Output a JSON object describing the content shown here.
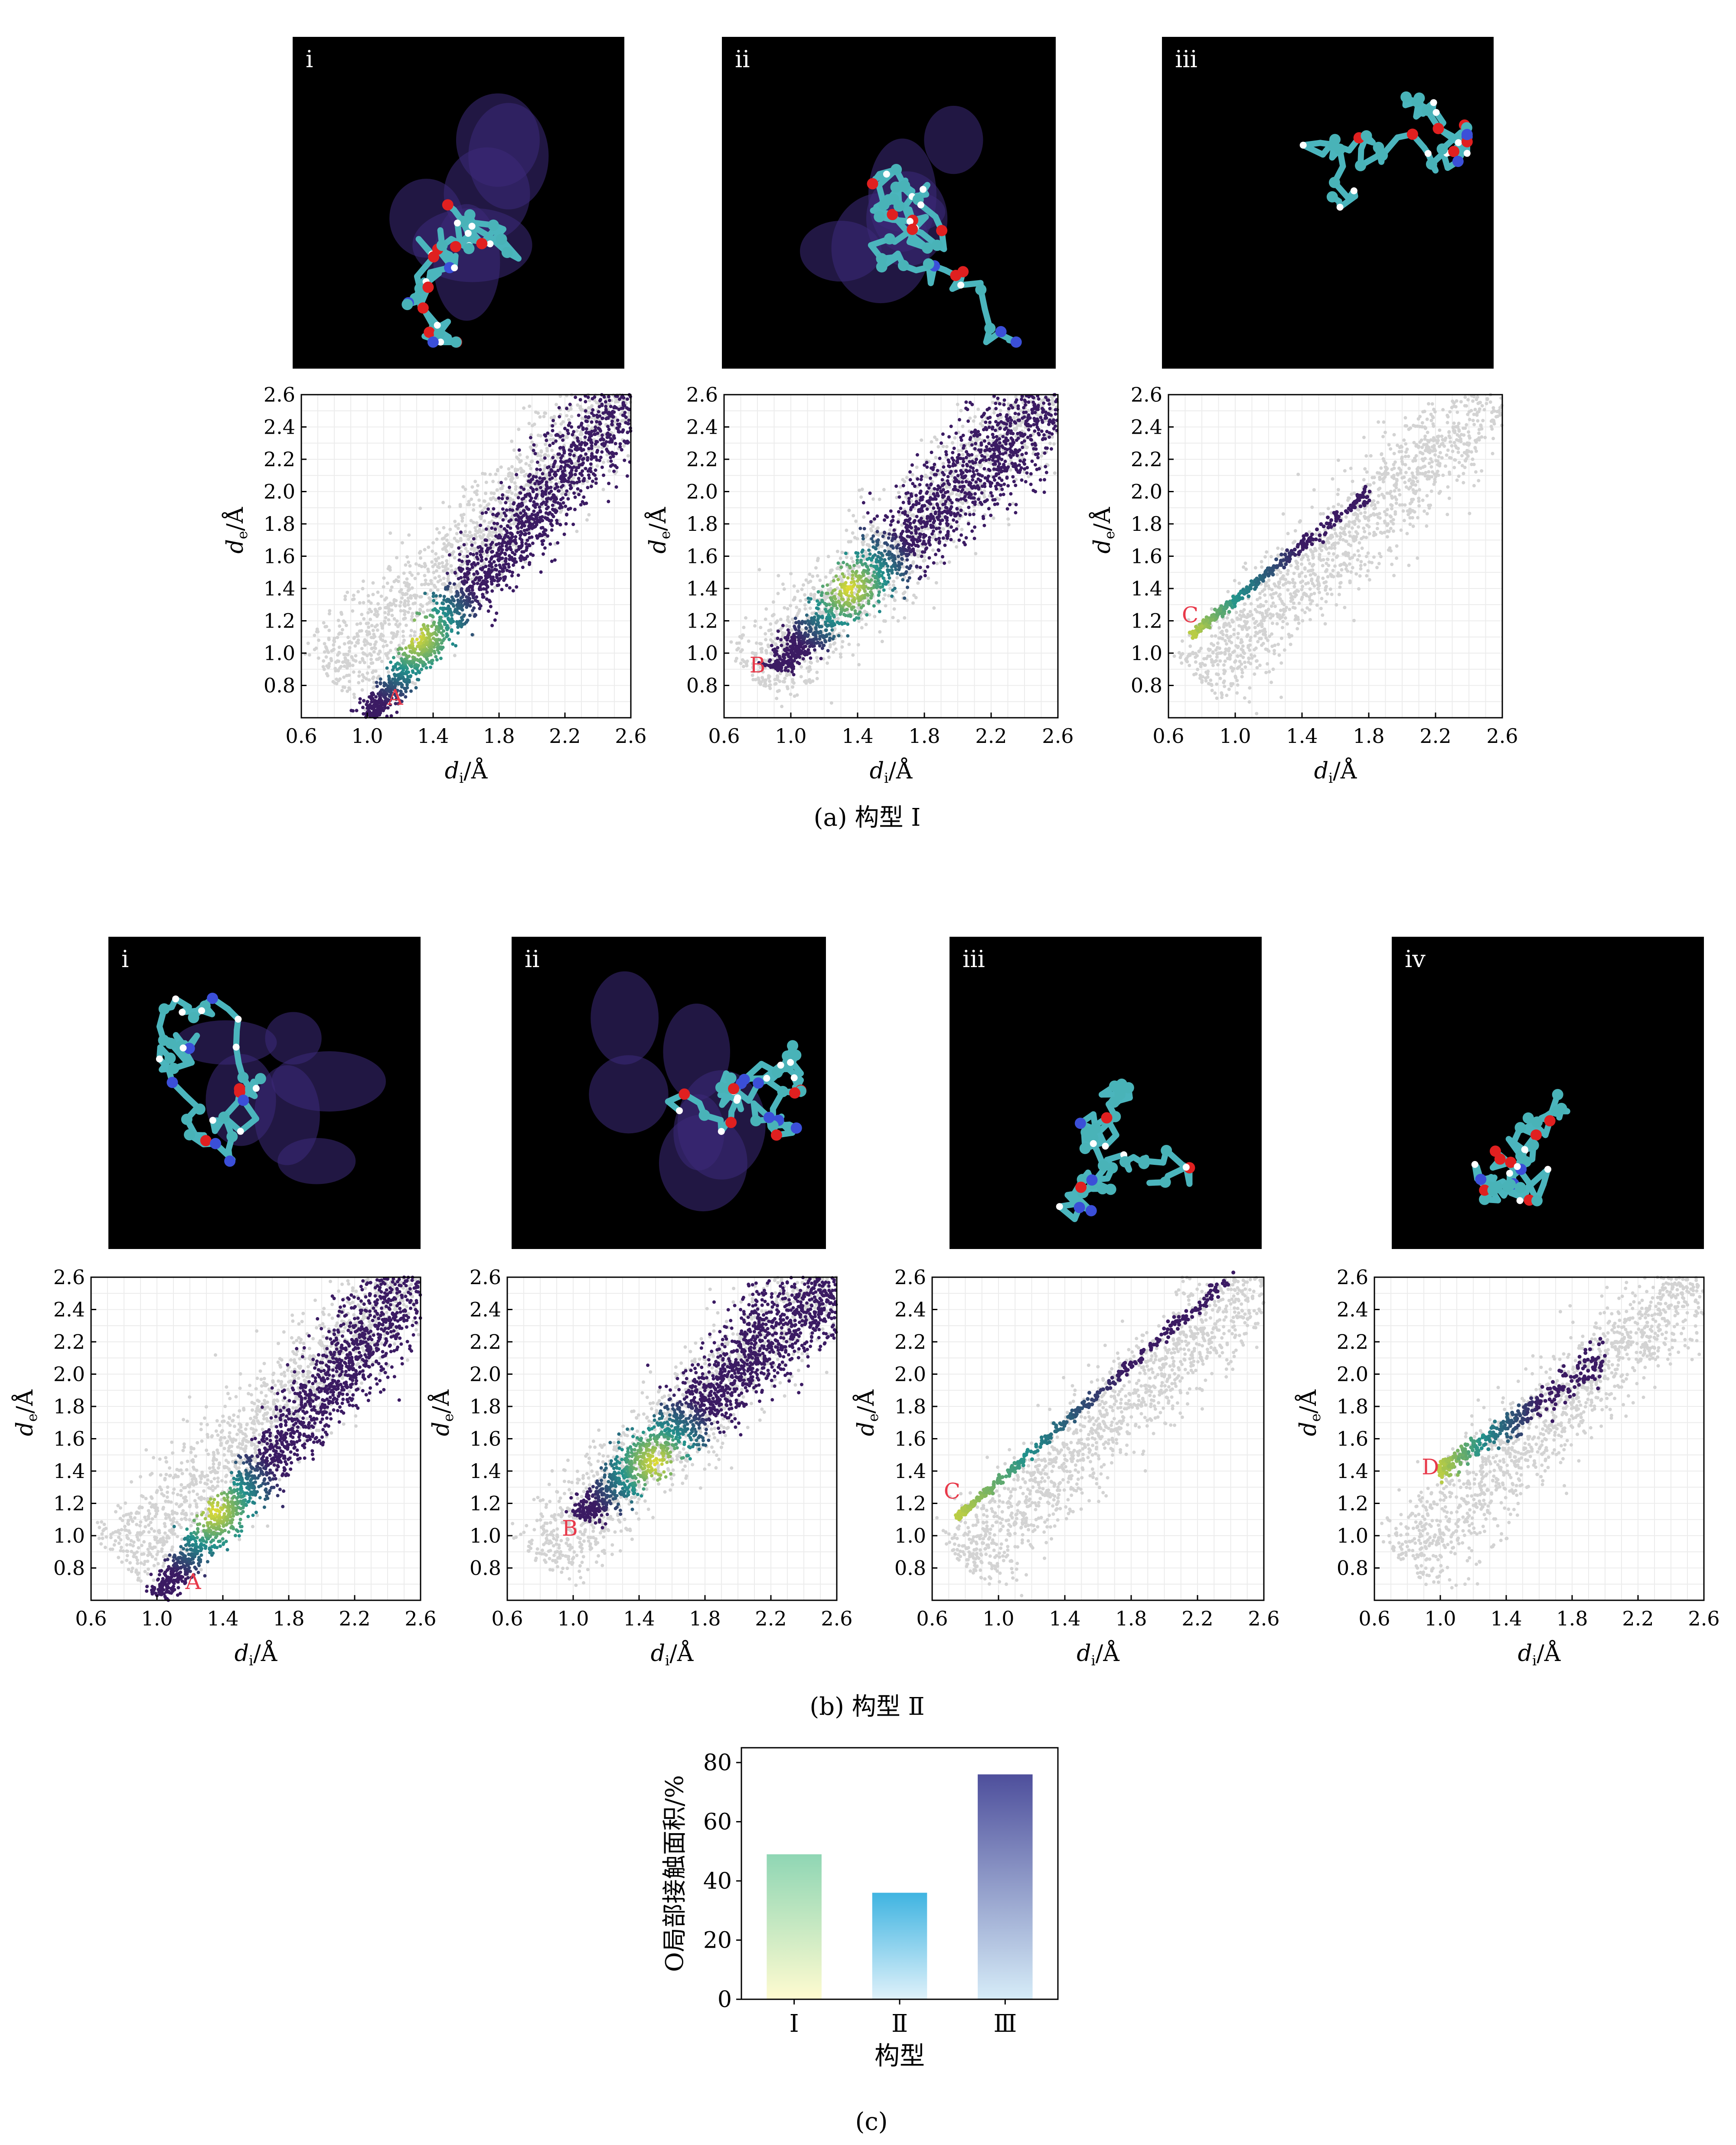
{
  "captions": {
    "a": "(a) 构型 Ⅰ",
    "b": "(b) 构型 Ⅱ",
    "c": "(c)"
  },
  "colors": {
    "grey_points": "#d3d3d3",
    "density_low": "#3b1b63",
    "density_mid": "#21918c",
    "density_high": "#fde725",
    "marker_label": "#e8394a",
    "panel_bg": "#000000",
    "bar_I_top": "#8fd6b4",
    "bar_I_bottom": "#fffbd0",
    "bar_II_top": "#3fb4e1",
    "bar_II_bottom": "#dff1fa",
    "bar_III_top": "#4e4f9c",
    "bar_III_bottom": "#d6ecf8"
  },
  "molecule_panels": {
    "row_a": [
      {
        "label": "i",
        "icon": "molecule-noncovalent-surface-icon"
      },
      {
        "label": "ii",
        "icon": "molecule-noncovalent-surface-icon"
      },
      {
        "label": "iii",
        "icon": "molecule-ball-stick-icon"
      }
    ],
    "row_b": [
      {
        "label": "i",
        "icon": "molecule-noncovalent-surface-icon"
      },
      {
        "label": "ii",
        "icon": "molecule-noncovalent-surface-icon"
      },
      {
        "label": "iii",
        "icon": "molecule-ball-stick-icon"
      },
      {
        "label": "ⅳ",
        "icon": "molecule-ball-stick-icon"
      }
    ]
  },
  "chart_data": [
    {
      "id": "a-i",
      "type": "scatter",
      "xlabel_main": "d",
      "xlabel_sub": "i",
      "xlabel_unit": "/Å",
      "ylabel_main": "d",
      "ylabel_sub": "e",
      "ylabel_unit": "/Å",
      "xlim": [
        0.6,
        2.6
      ],
      "ylim": [
        0.6,
        2.6
      ],
      "xticks": [
        "0.6",
        "1.0",
        "1.4",
        "1.8",
        "2.2",
        "2.6"
      ],
      "yticks": [
        "0.8",
        "1.0",
        "1.2",
        "1.4",
        "1.6",
        "1.8",
        "2.0",
        "2.2",
        "2.4",
        "2.6"
      ],
      "grid": true,
      "marker": {
        "label": "A",
        "x": 1.17,
        "y": 0.68
      },
      "highlight": "broad band from (1.0,0.6) to (2.6,2.6), densest near (1.3,1.1)"
    },
    {
      "id": "a-ii",
      "type": "scatter",
      "xlabel_main": "d",
      "xlabel_sub": "i",
      "xlabel_unit": "/Å",
      "ylabel_main": "d",
      "ylabel_sub": "e",
      "ylabel_unit": "/Å",
      "xlim": [
        0.6,
        2.6
      ],
      "ylim": [
        0.6,
        2.6
      ],
      "xticks": [
        "0.6",
        "1.0",
        "1.4",
        "1.8",
        "2.2",
        "2.6"
      ],
      "yticks": [
        "0.8",
        "1.0",
        "1.2",
        "1.4",
        "1.6",
        "1.8",
        "2.0",
        "2.2",
        "2.4",
        "2.6"
      ],
      "grid": true,
      "marker": {
        "label": "B",
        "x": 0.8,
        "y": 0.88
      },
      "highlight": "broad band from (0.9,0.9) to (2.6,2.6), densest near (1.35,1.4)"
    },
    {
      "id": "a-iii",
      "type": "scatter",
      "xlabel_main": "d",
      "xlabel_sub": "i",
      "xlabel_unit": "/Å",
      "ylabel_main": "d",
      "ylabel_sub": "e",
      "ylabel_unit": "/Å",
      "xlim": [
        0.6,
        2.6
      ],
      "ylim": [
        0.6,
        2.6
      ],
      "xticks": [
        "0.6",
        "1.0",
        "1.4",
        "1.8",
        "2.2",
        "2.6"
      ],
      "yticks": [
        "0.8",
        "1.0",
        "1.2",
        "1.4",
        "1.6",
        "1.8",
        "2.0",
        "2.2",
        "2.4",
        "2.6"
      ],
      "grid": true,
      "marker": {
        "label": "C",
        "x": 0.73,
        "y": 1.19
      },
      "highlight": "narrow wing from (0.75,1.12) to (1.8,2.0)"
    },
    {
      "id": "b-i",
      "type": "scatter",
      "xlabel_main": "d",
      "xlabel_sub": "i",
      "xlabel_unit": "/Å",
      "ylabel_main": "d",
      "ylabel_sub": "e",
      "ylabel_unit": "/Å",
      "xlim": [
        0.6,
        2.6
      ],
      "ylim": [
        0.6,
        2.6
      ],
      "xticks": [
        "0.6",
        "1.0",
        "1.4",
        "1.8",
        "2.2",
        "2.6"
      ],
      "yticks": [
        "0.8",
        "1.0",
        "1.2",
        "1.4",
        "1.6",
        "1.8",
        "2.0",
        "2.2",
        "2.4",
        "2.6"
      ],
      "grid": true,
      "marker": {
        "label": "A",
        "x": 1.22,
        "y": 0.67
      },
      "highlight": "broad band from (1.0,0.62) to (2.6,2.6), densest near (1.35,1.15)"
    },
    {
      "id": "b-ii",
      "type": "scatter",
      "xlabel_main": "d",
      "xlabel_sub": "i",
      "xlabel_unit": "/Å",
      "ylabel_main": "d",
      "ylabel_sub": "e",
      "ylabel_unit": "/Å",
      "xlim": [
        0.6,
        2.6
      ],
      "ylim": [
        0.6,
        2.6
      ],
      "xticks": [
        "0.6",
        "1.0",
        "1.4",
        "1.8",
        "2.2",
        "2.6"
      ],
      "yticks": [
        "0.8",
        "1.0",
        "1.2",
        "1.4",
        "1.6",
        "1.8",
        "2.0",
        "2.2",
        "2.4",
        "2.6"
      ],
      "grid": true,
      "marker": {
        "label": "B",
        "x": 0.98,
        "y": 1.0
      },
      "highlight": "broad band from (1.05,1.1) to (2.6,2.6), densest near (1.5,1.45)"
    },
    {
      "id": "b-iii",
      "type": "scatter",
      "xlabel_main": "d",
      "xlabel_sub": "i",
      "xlabel_unit": "/Å",
      "ylabel_main": "d",
      "ylabel_sub": "e",
      "ylabel_unit": "/Å",
      "xlim": [
        0.6,
        2.6
      ],
      "ylim": [
        0.6,
        2.6
      ],
      "xticks": [
        "0.6",
        "1.0",
        "1.4",
        "1.8",
        "2.2",
        "2.6"
      ],
      "yticks": [
        "0.8",
        "1.0",
        "1.2",
        "1.4",
        "1.6",
        "1.8",
        "2.0",
        "2.2",
        "2.4",
        "2.6"
      ],
      "grid": true,
      "marker": {
        "label": "C",
        "x": 0.72,
        "y": 1.23
      },
      "highlight": "narrow wing from (0.76,1.12) to (2.4,2.6)"
    },
    {
      "id": "b-iv",
      "type": "scatter",
      "xlabel_main": "d",
      "xlabel_sub": "i",
      "xlabel_unit": "/Å",
      "ylabel_main": "d",
      "ylabel_sub": "e",
      "ylabel_unit": "/Å",
      "xlim": [
        0.6,
        2.6
      ],
      "ylim": [
        0.6,
        2.6
      ],
      "xticks": [
        "0.6",
        "1.0",
        "1.4",
        "1.8",
        "2.2",
        "2.6"
      ],
      "yticks": [
        "0.8",
        "1.0",
        "1.2",
        "1.4",
        "1.6",
        "1.8",
        "2.0",
        "2.2",
        "2.4",
        "2.6"
      ],
      "grid": true,
      "marker": {
        "label": "D",
        "x": 0.94,
        "y": 1.38
      },
      "highlight": "short wing from (1.0,1.4) to (2.0,2.1)"
    },
    {
      "id": "c",
      "type": "bar",
      "categories": [
        "Ⅰ",
        "Ⅱ",
        "Ⅲ"
      ],
      "values": [
        49,
        36,
        76
      ],
      "xlabel": "构型",
      "ylabel": "O局部接触面积/%",
      "ylim": [
        0,
        85
      ],
      "yticks": [
        "0",
        "20",
        "40",
        "60",
        "80"
      ]
    }
  ]
}
